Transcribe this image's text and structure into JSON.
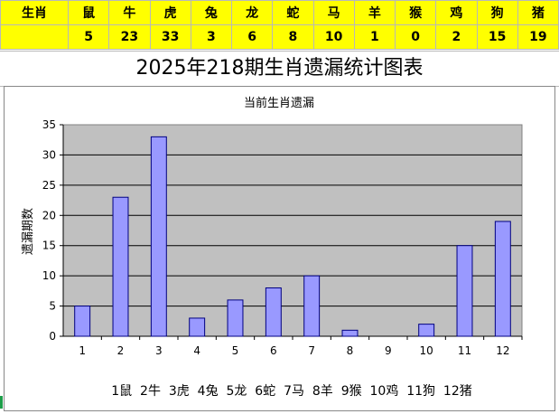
{
  "table": {
    "header_label": "生肖",
    "count_label": "",
    "animals": [
      "鼠",
      "牛",
      "虎",
      "兔",
      "龙",
      "蛇",
      "马",
      "羊",
      "猴",
      "鸡",
      "狗",
      "猪"
    ],
    "values": [
      "5",
      "23",
      "33",
      "3",
      "6",
      "8",
      "10",
      "1",
      "0",
      "2",
      "15",
      "19"
    ]
  },
  "page_title": "2025年218期生肖遗漏统计图表",
  "chart_data": {
    "type": "bar",
    "title": "当前生肖遗漏",
    "xlabel": "1鼠  2牛  3虎  4兔  5龙  6蛇  7马  8羊  9猴  10鸡  11狗  12猪",
    "ylabel": "遗漏期数",
    "categories": [
      "1",
      "2",
      "3",
      "4",
      "5",
      "6",
      "7",
      "8",
      "9",
      "10",
      "11",
      "12"
    ],
    "values": [
      5,
      23,
      33,
      3,
      6,
      8,
      10,
      1,
      0,
      2,
      15,
      19
    ],
    "ylim": [
      0,
      35
    ],
    "yticks": [
      0,
      5,
      10,
      15,
      20,
      25,
      30,
      35
    ],
    "grid": true,
    "colors": {
      "bar_fill": "#9999ff",
      "bar_stroke": "#000080",
      "plot_bg": "#c0c0c0",
      "header_bg": "#ffff00"
    }
  }
}
